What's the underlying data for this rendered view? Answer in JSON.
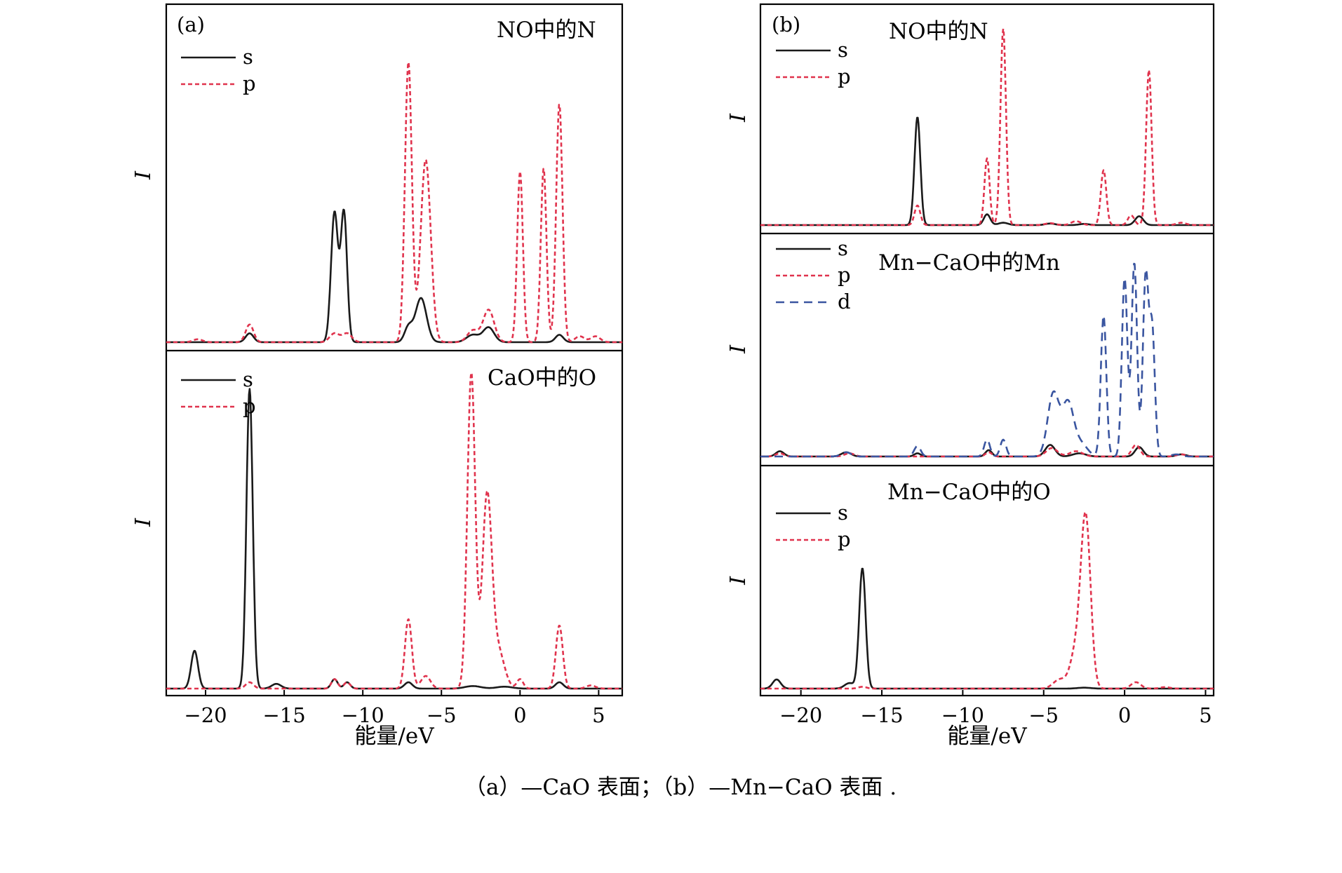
{
  "caption": "（a）—CaO 表面；（b）—Mn−CaO 表面 .",
  "colors": {
    "s": "#1a1a1a",
    "p": "#e0334d",
    "d": "#3a55a0"
  },
  "chart_data": [
    {
      "type": "line",
      "panel_label": "(a)",
      "title": "NO中的N",
      "xlabel": "能量/eV",
      "ylabel": "I",
      "xlim": [
        -22.5,
        6.5
      ],
      "xticks": [
        -20,
        -15,
        -10,
        -5,
        0,
        5
      ],
      "legend_position": "top-left",
      "series": [
        {
          "name": "s",
          "style": "solid",
          "color": "s",
          "peaks": [
            [
              -17.2,
              0.03,
              0.25
            ],
            [
              -11.8,
              0.44,
              0.22
            ],
            [
              -11.2,
              0.44,
              0.2
            ],
            [
              -7.1,
              0.05,
              0.25
            ],
            [
              -6.3,
              0.15,
              0.35
            ],
            [
              -3.0,
              0.025,
              0.4
            ],
            [
              -2.0,
              0.05,
              0.35
            ],
            [
              2.5,
              0.025,
              0.25
            ]
          ]
        },
        {
          "name": "p",
          "style": "dotted",
          "color": "p",
          "peaks": [
            [
              -20.5,
              0.01,
              0.3
            ],
            [
              -17.2,
              0.06,
              0.25
            ],
            [
              -11.8,
              0.03,
              0.3
            ],
            [
              -11.0,
              0.03,
              0.3
            ],
            [
              -7.1,
              0.95,
              0.22
            ],
            [
              -6.0,
              0.62,
              0.32
            ],
            [
              -3.0,
              0.04,
              0.35
            ],
            [
              -2.0,
              0.11,
              0.35
            ],
            [
              0.0,
              0.58,
              0.18
            ],
            [
              1.5,
              0.59,
              0.18
            ],
            [
              2.5,
              0.81,
              0.2
            ],
            [
              3.8,
              0.02,
              0.3
            ],
            [
              4.8,
              0.02,
              0.3
            ]
          ]
        }
      ]
    },
    {
      "type": "line",
      "title": "CaO中的O",
      "xlabel": "能量/eV",
      "ylabel": "I",
      "xlim": [
        -22.5,
        6.5
      ],
      "xticks": [
        -20,
        -15,
        -10,
        -5,
        0,
        5
      ],
      "legend_position": "top-left",
      "series": [
        {
          "name": "s",
          "style": "solid",
          "color": "s",
          "peaks": [
            [
              -20.7,
              0.12,
              0.22
            ],
            [
              -17.2,
              0.95,
              0.2
            ],
            [
              -15.5,
              0.015,
              0.3
            ],
            [
              -11.8,
              0.03,
              0.2
            ],
            [
              -11.0,
              0.02,
              0.2
            ],
            [
              -7.1,
              0.02,
              0.25
            ],
            [
              -3.0,
              0.008,
              0.5
            ],
            [
              -1.0,
              0.006,
              0.5
            ],
            [
              2.5,
              0.02,
              0.25
            ]
          ]
        },
        {
          "name": "p",
          "style": "dotted",
          "color": "p",
          "peaks": [
            [
              -17.2,
              0.02,
              0.25
            ],
            [
              -11.8,
              0.03,
              0.2
            ],
            [
              -11.0,
              0.02,
              0.2
            ],
            [
              -7.1,
              0.22,
              0.22
            ],
            [
              -6.0,
              0.04,
              0.3
            ],
            [
              -3.1,
              1.0,
              0.25
            ],
            [
              -2.1,
              0.6,
              0.3
            ],
            [
              -1.4,
              0.12,
              0.4
            ],
            [
              0.0,
              0.03,
              0.2
            ],
            [
              2.5,
              0.2,
              0.22
            ],
            [
              4.5,
              0.01,
              0.3
            ]
          ]
        }
      ]
    },
    {
      "type": "line",
      "panel_label": "(b)",
      "title": "NO中的N",
      "xlabel": "能量/eV",
      "ylabel": "I",
      "xlim": [
        -22.5,
        5.5
      ],
      "xticks": [
        -20,
        -15,
        -10,
        -5,
        0,
        5
      ],
      "legend_position": "top-left",
      "series": [
        {
          "name": "s",
          "style": "solid",
          "color": "s",
          "peaks": [
            [
              -12.8,
              0.55,
              0.18
            ],
            [
              -8.5,
              0.055,
              0.2
            ],
            [
              -7.5,
              0.012,
              0.3
            ],
            [
              -4.6,
              0.008,
              0.3
            ],
            [
              -2.5,
              0.006,
              0.3
            ],
            [
              0.9,
              0.045,
              0.25
            ]
          ]
        },
        {
          "name": "p",
          "style": "dotted",
          "color": "p",
          "peaks": [
            [
              -12.8,
              0.1,
              0.18
            ],
            [
              -8.5,
              0.34,
              0.16
            ],
            [
              -7.5,
              1.0,
              0.17
            ],
            [
              -4.6,
              0.01,
              0.3
            ],
            [
              -3.0,
              0.02,
              0.3
            ],
            [
              -1.3,
              0.28,
              0.17
            ],
            [
              0.4,
              0.05,
              0.2
            ],
            [
              1.5,
              0.79,
              0.17
            ],
            [
              3.5,
              0.012,
              0.3
            ]
          ]
        }
      ]
    },
    {
      "type": "line",
      "title": "Mn−CaO中的Mn",
      "ylabel": "I",
      "xlim": [
        -22.5,
        5.5
      ],
      "xticks": [
        -20,
        -15,
        -10,
        -5,
        0,
        5
      ],
      "legend_position": "top-left",
      "series": [
        {
          "name": "s",
          "style": "solid",
          "color": "s",
          "peaks": [
            [
              -21.3,
              0.025,
              0.25
            ],
            [
              -17.2,
              0.02,
              0.3
            ],
            [
              -12.8,
              0.015,
              0.2
            ],
            [
              -8.4,
              0.03,
              0.2
            ],
            [
              -4.6,
              0.055,
              0.3
            ],
            [
              -2.8,
              0.015,
              0.4
            ],
            [
              0.9,
              0.045,
              0.25
            ],
            [
              3.5,
              0.01,
              0.3
            ]
          ]
        },
        {
          "name": "p",
          "style": "dotted",
          "color": "p",
          "peaks": [
            [
              -21.3,
              0.015,
              0.25
            ],
            [
              -17.0,
              0.015,
              0.3
            ],
            [
              -8.4,
              0.02,
              0.2
            ],
            [
              -4.5,
              0.04,
              0.35
            ],
            [
              -3.0,
              0.025,
              0.4
            ],
            [
              0.7,
              0.055,
              0.25
            ],
            [
              3.5,
              0.01,
              0.3
            ]
          ]
        },
        {
          "name": "d",
          "style": "dashed",
          "color": "d",
          "peaks": [
            [
              -17.2,
              0.02,
              0.3
            ],
            [
              -12.8,
              0.05,
              0.2
            ],
            [
              -8.5,
              0.08,
              0.18
            ],
            [
              -7.5,
              0.08,
              0.18
            ],
            [
              -4.4,
              0.3,
              0.35
            ],
            [
              -3.5,
              0.25,
              0.35
            ],
            [
              -2.7,
              0.06,
              0.4
            ],
            [
              -1.3,
              0.67,
              0.17
            ],
            [
              0.0,
              0.85,
              0.17
            ],
            [
              0.6,
              0.92,
              0.17
            ],
            [
              1.3,
              0.85,
              0.17
            ],
            [
              1.7,
              0.6,
              0.17
            ],
            [
              3.2,
              0.01,
              0.3
            ]
          ]
        }
      ]
    },
    {
      "type": "line",
      "title": "Mn−CaO中的O",
      "xlabel": "能量/eV",
      "ylabel": "I",
      "xlim": [
        -22.5,
        5.5
      ],
      "xticks": [
        -20,
        -15,
        -10,
        -5,
        0,
        5
      ],
      "legend_position": "top-left",
      "series": [
        {
          "name": "s",
          "style": "solid",
          "color": "s",
          "peaks": [
            [
              -21.5,
              0.05,
              0.25
            ],
            [
              -17.0,
              0.03,
              0.3
            ],
            [
              -16.2,
              0.66,
              0.2
            ],
            [
              -2.5,
              0.005,
              0.4
            ]
          ]
        },
        {
          "name": "p",
          "style": "dotted",
          "color": "p",
          "peaks": [
            [
              -16.2,
              0.01,
              0.25
            ],
            [
              -4.0,
              0.05,
              0.4
            ],
            [
              -3.0,
              0.2,
              0.35
            ],
            [
              -2.4,
              0.92,
              0.3
            ],
            [
              0.7,
              0.035,
              0.3
            ],
            [
              2.5,
              0.008,
              0.3
            ]
          ]
        }
      ]
    }
  ]
}
